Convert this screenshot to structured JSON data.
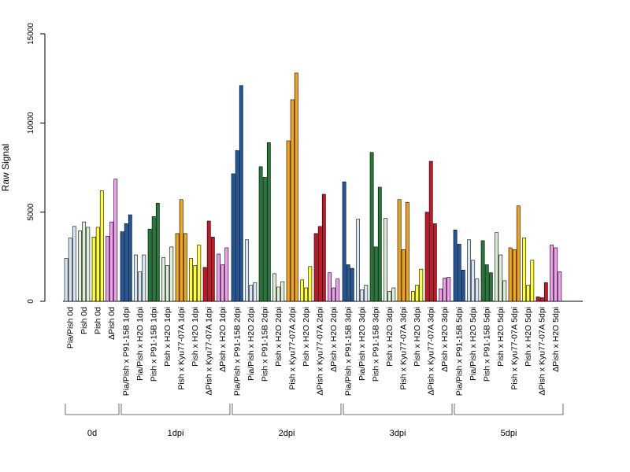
{
  "chart_data": {
    "type": "bar",
    "title": "",
    "ylabel": "Raw Signal",
    "xlabel": "",
    "ylim": [
      0,
      15000
    ],
    "yticks": [
      0,
      5000,
      10000,
      15000
    ],
    "grid": false,
    "legend": "none",
    "colors": {
      "light_blue": "#d6e6f5",
      "dark_blue": "#1f58a0",
      "white": "#ffffff",
      "dark_green": "#237a39",
      "light_green": "#dcefd7",
      "orange": "#f5a31a",
      "yellow": "#ffff33",
      "red": "#cc1424",
      "pink": "#f29cf0"
    },
    "groups": [
      {
        "label": "0d",
        "categories": [
          {
            "label": "Pia/Pish 0d",
            "values": [
              2400,
              3550,
              4200
            ],
            "colors": [
              "light_blue",
              "light_blue",
              "light_blue"
            ]
          },
          {
            "label": "Pish 0d",
            "values": [
              3950,
              4450,
              4150
            ],
            "colors": [
              "light_green",
              "light_green",
              "light_green"
            ]
          },
          {
            "label": "Pish 0d",
            "values": [
              3600,
              4150,
              6200
            ],
            "colors": [
              "yellow",
              "yellow",
              "yellow"
            ]
          },
          {
            "label": "ΔPish 0d",
            "values": [
              3650,
              4450,
              6850
            ],
            "colors": [
              "pink",
              "pink",
              "pink"
            ]
          }
        ]
      },
      {
        "label": "1dpi",
        "categories": [
          {
            "label": "Pia/Pish x P91-15B 1dpi",
            "values": [
              3900,
              4350,
              4850
            ],
            "colors": [
              "dark_blue",
              "dark_blue",
              "dark_blue"
            ]
          },
          {
            "label": "Pia/Pish x H2O 1dpi",
            "values": [
              2600,
              1650,
              2600
            ],
            "colors": [
              "light_blue",
              "light_blue",
              "light_blue"
            ]
          },
          {
            "label": "Pish x P91-15B 1dpi",
            "values": [
              4050,
              4750,
              5500
            ],
            "colors": [
              "dark_green",
              "dark_green",
              "dark_green"
            ]
          },
          {
            "label": "Pish x H2O 1dpi",
            "values": [
              2450,
              2000,
              3050
            ],
            "colors": [
              "light_green",
              "light_green",
              "light_green"
            ]
          },
          {
            "label": "Pish x Kyu77-07A 1dpi",
            "values": [
              3800,
              5700,
              3800
            ],
            "colors": [
              "orange",
              "orange",
              "orange"
            ]
          },
          {
            "label": "Pish x H2O 1dpi",
            "values": [
              2400,
              2000,
              3150
            ],
            "colors": [
              "yellow",
              "yellow",
              "yellow"
            ]
          },
          {
            "label": "ΔPish x Kyu77-07A 1dpi",
            "values": [
              1900,
              4500,
              3600
            ],
            "colors": [
              "red",
              "red",
              "red"
            ]
          },
          {
            "label": "ΔPish x H2O 1dpi",
            "values": [
              2650,
              2050,
              3000
            ],
            "colors": [
              "pink",
              "pink",
              "pink"
            ]
          }
        ]
      },
      {
        "label": "2dpi",
        "categories": [
          {
            "label": "Pia/Pish x P91-15B 2dpi",
            "values": [
              7150,
              8450,
              12100
            ],
            "colors": [
              "dark_blue",
              "dark_blue",
              "dark_blue"
            ]
          },
          {
            "label": "Pia/Pish x H2O 2dpi",
            "values": [
              3450,
              900,
              1050
            ],
            "colors": [
              "light_blue",
              "light_blue",
              "light_blue"
            ]
          },
          {
            "label": "Pish x P91-15B 2dpi",
            "values": [
              7550,
              6950,
              8900
            ],
            "colors": [
              "dark_green",
              "dark_green",
              "dark_green"
            ]
          },
          {
            "label": "Pish x H2O 2dpi",
            "values": [
              1550,
              800,
              1100
            ],
            "colors": [
              "light_green",
              "light_green",
              "light_green"
            ]
          },
          {
            "label": "Pish x Kyu77-07A 2dpi",
            "values": [
              9000,
              11300,
              12800
            ],
            "colors": [
              "orange",
              "orange",
              "orange"
            ]
          },
          {
            "label": "Pish x H2O 2dpi",
            "values": [
              1200,
              750,
              1950
            ],
            "colors": [
              "yellow",
              "yellow",
              "yellow"
            ]
          },
          {
            "label": "ΔPish x Kyu77-07A 2dpi",
            "values": [
              3800,
              4200,
              6000
            ],
            "colors": [
              "red",
              "red",
              "red"
            ]
          },
          {
            "label": "ΔPish x H2O 2dpi",
            "values": [
              1600,
              750,
              1250
            ],
            "colors": [
              "pink",
              "pink",
              "pink"
            ]
          }
        ]
      },
      {
        "label": "3dpi",
        "categories": [
          {
            "label": "Pia/Pish x P91-15B 3dpi",
            "values": [
              6700,
              2050,
              1850
            ],
            "colors": [
              "dark_blue",
              "dark_blue",
              "dark_blue"
            ]
          },
          {
            "label": "Pia/Pish x H2O 3dpi",
            "values": [
              4600,
              650,
              900
            ],
            "colors": [
              "light_blue",
              "light_blue",
              "light_blue"
            ]
          },
          {
            "label": "Pish x P91-15B 3dpi",
            "values": [
              8350,
              3050,
              6400
            ],
            "colors": [
              "dark_green",
              "dark_green",
              "dark_green"
            ]
          },
          {
            "label": "Pish x H2O 3dpi",
            "values": [
              4650,
              550,
              750
            ],
            "colors": [
              "light_green",
              "light_green",
              "light_green"
            ]
          },
          {
            "label": "Pish x Kyu77-07A 3dpi",
            "values": [
              5700,
              2900,
              5550
            ],
            "colors": [
              "orange",
              "orange",
              "orange"
            ]
          },
          {
            "label": "Pish x H2O 3dpi",
            "values": [
              550,
              900,
              1800
            ],
            "colors": [
              "yellow",
              "yellow",
              "yellow"
            ]
          },
          {
            "label": "ΔPish x Kyu77-07A 3dpi",
            "values": [
              5000,
              7850,
              4350
            ],
            "colors": [
              "red",
              "red",
              "red"
            ]
          },
          {
            "label": "ΔPish x H2O 3dpi",
            "values": [
              700,
              1300,
              1350
            ],
            "colors": [
              "pink",
              "pink",
              "pink"
            ]
          }
        ]
      },
      {
        "label": "5dpi",
        "categories": [
          {
            "label": "Pia/Pish x P91-15B 5dpi",
            "values": [
              4000,
              3200,
              1750
            ],
            "colors": [
              "dark_blue",
              "dark_blue",
              "dark_blue"
            ]
          },
          {
            "label": "Pia/Pish x H2O 5dpi",
            "values": [
              3450,
              2300,
              1250
            ],
            "colors": [
              "light_blue",
              "light_blue",
              "light_blue"
            ]
          },
          {
            "label": "Pish x P91-15B 5dpi",
            "values": [
              3400,
              2050,
              1600
            ],
            "colors": [
              "dark_green",
              "dark_green",
              "dark_green"
            ]
          },
          {
            "label": "Pish x H2O 5dpi",
            "values": [
              3850,
              2600,
              1150
            ],
            "colors": [
              "light_green",
              "light_green",
              "light_green"
            ]
          },
          {
            "label": "Pish x Kyu77-07A 5dpi",
            "values": [
              3000,
              2900,
              5350
            ],
            "colors": [
              "orange",
              "orange",
              "orange"
            ]
          },
          {
            "label": "Pish x H2O 5dpi",
            "values": [
              3550,
              900,
              2300
            ],
            "colors": [
              "yellow",
              "yellow",
              "yellow"
            ]
          },
          {
            "label": "ΔPish x Kyu77-07A 5dpi",
            "values": [
              250,
              200,
              1050
            ],
            "colors": [
              "red",
              "red",
              "red"
            ]
          },
          {
            "label": "ΔPish x H2O 5dpi",
            "values": [
              3150,
              3000,
              1650
            ],
            "colors": [
              "pink",
              "pink",
              "pink"
            ]
          }
        ]
      }
    ]
  }
}
